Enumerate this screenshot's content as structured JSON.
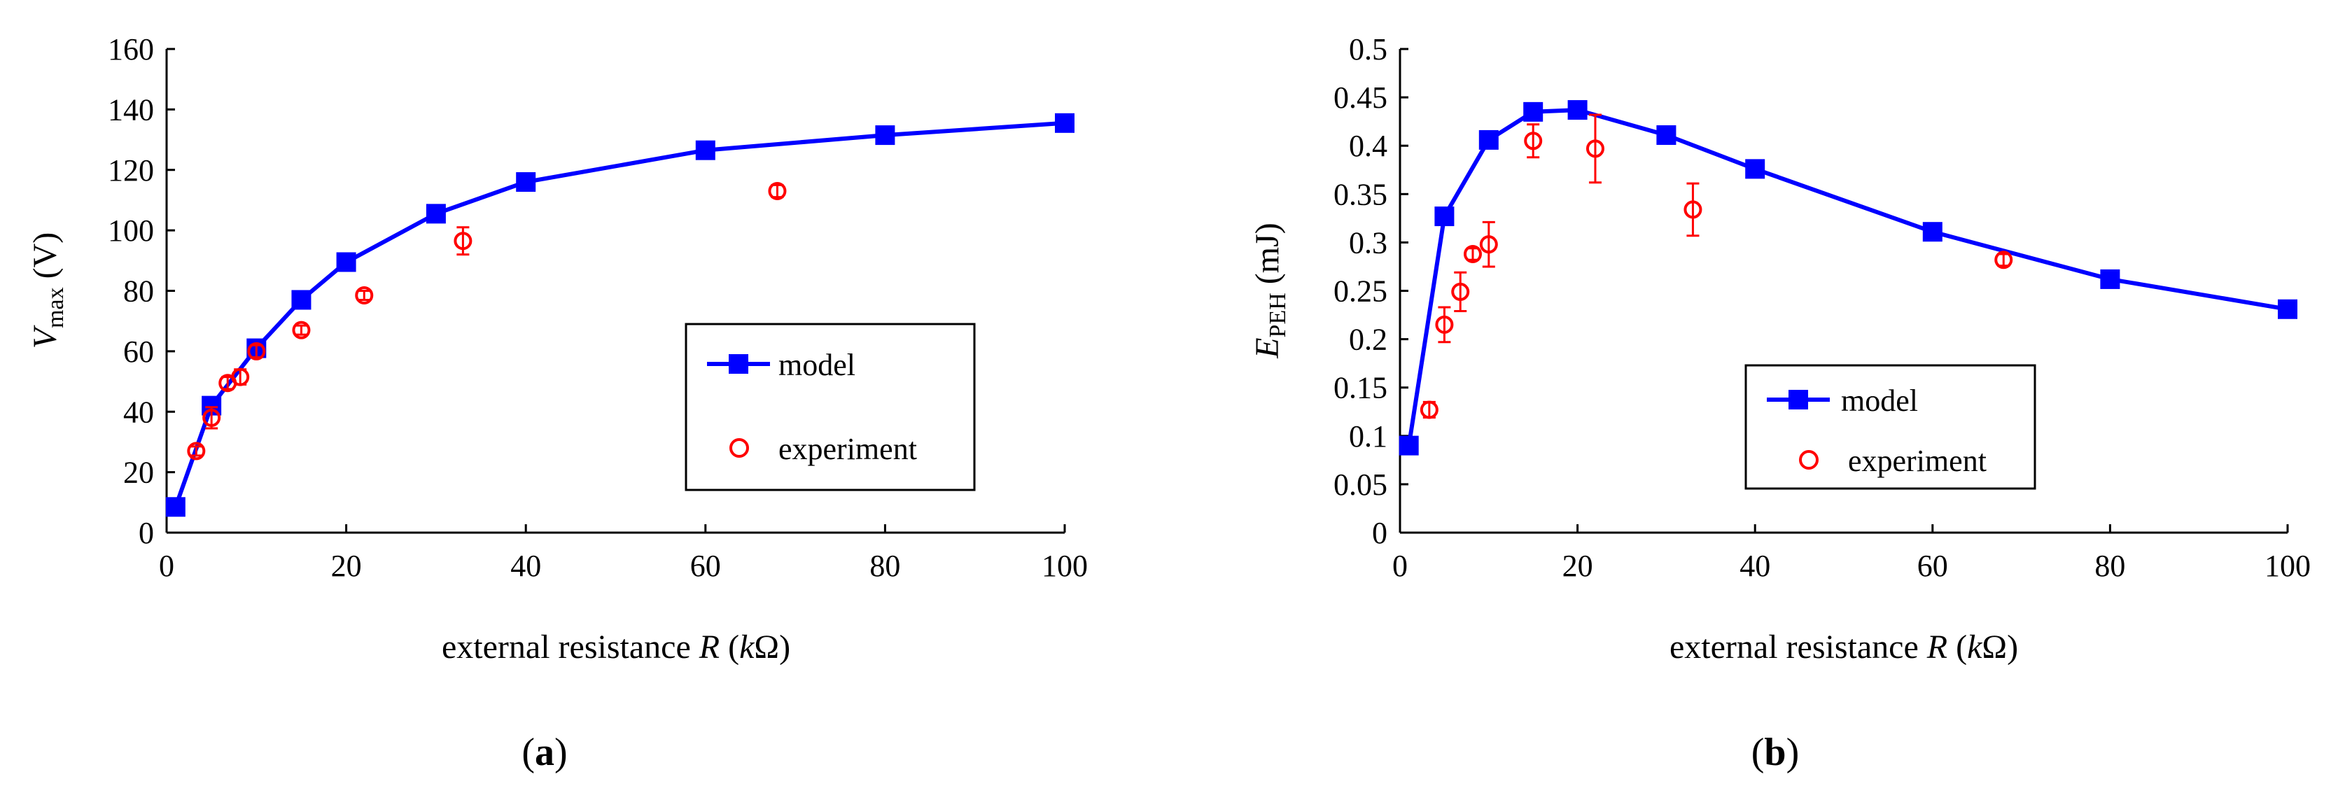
{
  "chart_data": [
    {
      "type": "line",
      "panel_label": {
        "open": "(",
        "letter": "a",
        "close": ")"
      },
      "xlabel": {
        "text": "external resistance ",
        "var": "R",
        "open": " (",
        "k": "k",
        "omega": "Ω",
        "close": ")"
      },
      "ylabel": {
        "var": "V",
        "sub": "max",
        "unit": " (V)"
      },
      "xlim": [
        0,
        100
      ],
      "ylim": [
        0,
        160
      ],
      "xticks": [
        0,
        20,
        40,
        60,
        80,
        100
      ],
      "yticks": [
        0,
        20,
        40,
        60,
        80,
        100,
        120,
        140,
        160
      ],
      "legend": {
        "position": "lower-right",
        "model": "model",
        "experiment": "experiment"
      },
      "series": [
        {
          "name": "model",
          "color": "#0000ff",
          "marker": "square",
          "x": [
            1,
            5,
            10,
            15,
            20,
            30,
            40,
            60,
            80,
            100
          ],
          "y": [
            8.5,
            42,
            61,
            77,
            89.5,
            105.5,
            116,
            126.5,
            131.5,
            135.5
          ]
        },
        {
          "name": "experiment",
          "color": "#ff0000",
          "marker": "circle",
          "x": [
            3.3,
            5,
            6.8,
            8.2,
            10,
            15,
            22,
            33,
            68
          ],
          "y": [
            27,
            38,
            49.5,
            51.5,
            60,
            67,
            78.5,
            96.5,
            113
          ],
          "err": [
            1.5,
            3.5,
            2,
            2.5,
            2,
            1.5,
            1.5,
            4.5,
            2
          ]
        }
      ]
    },
    {
      "type": "line",
      "panel_label": {
        "open": "(",
        "letter": "b",
        "close": ")"
      },
      "xlabel": {
        "text": "external resistance ",
        "var": "R",
        "open": " (",
        "k": "k",
        "omega": "Ω",
        "close": ")"
      },
      "ylabel": {
        "var": "E",
        "sub": "PEH",
        "unit": " (mJ)"
      },
      "xlim": [
        0,
        100
      ],
      "ylim": [
        0,
        0.5
      ],
      "xticks": [
        0,
        20,
        40,
        60,
        80,
        100
      ],
      "yticks": [
        0,
        0.05,
        0.1,
        0.15,
        0.2,
        0.25,
        0.3,
        0.35,
        0.4,
        0.45,
        0.5
      ],
      "legend": {
        "position": "lower-center",
        "model": "model",
        "experiment": "experiment"
      },
      "series": [
        {
          "name": "model",
          "color": "#0000ff",
          "marker": "square",
          "x": [
            1,
            5,
            10,
            15,
            20,
            30,
            40,
            60,
            80,
            100
          ],
          "y": [
            0.09,
            0.327,
            0.406,
            0.435,
            0.437,
            0.411,
            0.376,
            0.311,
            0.262,
            0.231
          ]
        },
        {
          "name": "experiment",
          "color": "#ff0000",
          "marker": "circle",
          "x": [
            3.3,
            5,
            6.8,
            8.2,
            10,
            15,
            22,
            33,
            68
          ],
          "y": [
            0.127,
            0.215,
            0.249,
            0.288,
            0.298,
            0.405,
            0.397,
            0.334,
            0.282
          ],
          "err": [
            0.008,
            0.018,
            0.02,
            0.006,
            0.023,
            0.017,
            0.035,
            0.027,
            0.006
          ]
        }
      ]
    }
  ]
}
